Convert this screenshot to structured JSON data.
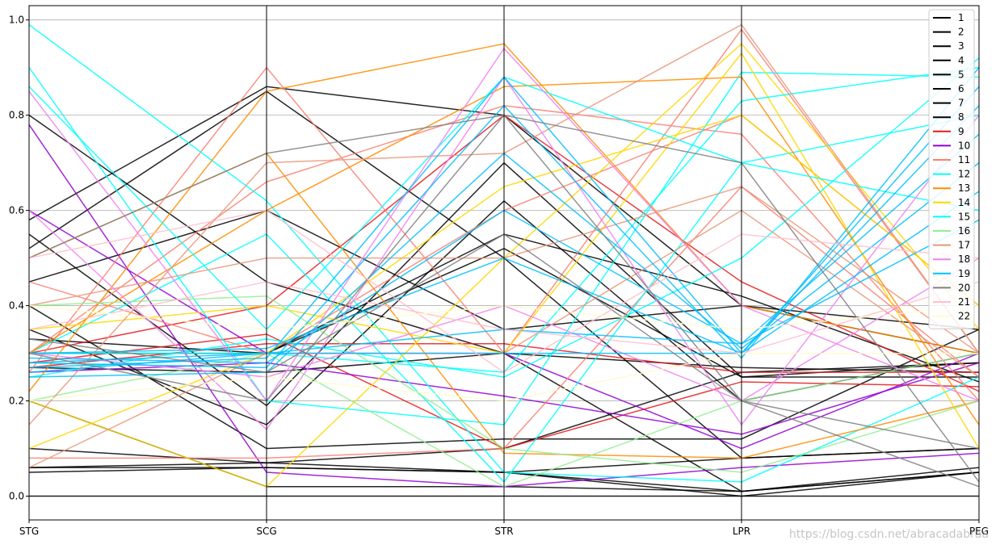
{
  "chart_data": {
    "type": "parallel_coordinates",
    "axes": [
      "STG",
      "SCG",
      "STR",
      "LPR",
      "PEG"
    ],
    "ylim": [
      -0.05,
      1.03
    ],
    "y_ticks": [
      "0.0",
      "0.2",
      "0.4",
      "0.6",
      "0.8",
      "1.0"
    ],
    "y_tick_values": [
      0.0,
      0.2,
      0.4,
      0.6,
      0.8,
      1.0
    ],
    "grid": true,
    "legend_position": "upper right",
    "series": [
      {
        "name": "1",
        "color": "#000000",
        "values": [
          [
            0.0,
            0.0,
            0.0,
            0.0,
            0.0
          ],
          [
            0.06,
            0.07,
            0.05,
            0.0,
            0.05
          ]
        ]
      },
      {
        "name": "2",
        "color": "#000000",
        "values": [
          [
            0.05,
            0.06,
            0.05,
            0.01,
            0.05
          ],
          [
            0.52,
            0.85,
            0.5,
            0.08,
            0.1
          ]
        ]
      },
      {
        "name": "3",
        "color": "#000000",
        "values": [
          [
            0.06,
            0.06,
            0.05,
            0.08,
            0.1
          ],
          [
            0.55,
            0.19,
            0.7,
            0.25,
            0.28
          ]
        ]
      },
      {
        "name": "4",
        "color": "#000000",
        "values": [
          [
            0.58,
            0.86,
            0.8,
            0.4,
            0.3
          ],
          [
            0.27,
            0.26,
            0.3,
            0.27,
            0.26
          ]
        ]
      },
      {
        "name": "5",
        "color": "#000000",
        "values": [
          [
            0.3,
            0.3,
            0.52,
            0.25,
            0.25
          ],
          [
            0.4,
            0.1,
            0.12,
            0.12,
            0.35
          ]
        ]
      },
      {
        "name": "6",
        "color": "#000000",
        "values": [
          [
            0.1,
            0.07,
            0.1,
            0.26,
            0.28
          ],
          [
            0.2,
            0.02,
            0.02,
            0.01,
            0.06
          ]
        ]
      },
      {
        "name": "7",
        "color": "#000000",
        "values": [
          [
            0.35,
            0.15,
            0.62,
            0.2,
            0.3
          ],
          [
            0.8,
            0.45,
            0.3,
            0.01,
            0.05
          ]
        ]
      },
      {
        "name": "8",
        "color": "#000000",
        "values": [
          [
            0.45,
            0.6,
            0.35,
            0.4,
            0.35
          ],
          [
            0.33,
            0.3,
            0.55,
            0.42,
            0.24
          ]
        ]
      },
      {
        "name": "9",
        "color": "#e41a1c",
        "values": [
          [
            0.27,
            0.32,
            0.32,
            0.26,
            0.26
          ],
          [
            0.3,
            0.4,
            0.8,
            0.45,
            0.22
          ],
          [
            0.28,
            0.34,
            0.1,
            0.24,
            0.23
          ]
        ]
      },
      {
        "name": "10",
        "color": "#9400d3",
        "values": [
          [
            0.78,
            0.05,
            0.02,
            0.06,
            0.09
          ],
          [
            0.6,
            0.3,
            0.3,
            0.1,
            0.3
          ],
          [
            0.26,
            0.28,
            0.21,
            0.13,
            0.28
          ]
        ]
      },
      {
        "name": "11",
        "color": "#fa8072",
        "values": [
          [
            0.26,
            0.9,
            0.3,
            0.98,
            0.3
          ],
          [
            0.08,
            0.08,
            0.1,
            0.65,
            0.25
          ],
          [
            0.45,
            0.3,
            0.6,
            0.8,
            0.4
          ],
          [
            0.3,
            0.66,
            0.82,
            0.76,
            0.2
          ]
        ]
      },
      {
        "name": "12",
        "color": "#00ffff",
        "values": [
          [
            0.99,
            0.62,
            0.05,
            0.03,
            0.25
          ],
          [
            0.9,
            0.2,
            0.15,
            0.89,
            0.88
          ],
          [
            0.3,
            0.55,
            0.03,
            0.7,
            0.8
          ]
        ]
      },
      {
        "name": "13",
        "color": "#ff8c00",
        "values": [
          [
            0.22,
            0.85,
            0.95,
            0.4,
            0.3
          ],
          [
            0.3,
            0.6,
            0.86,
            0.88,
            0.15
          ],
          [
            0.5,
            0.72,
            0.09,
            0.08,
            0.2
          ]
        ]
      },
      {
        "name": "14",
        "color": "#ffd700",
        "values": [
          [
            0.2,
            0.02,
            0.5,
            0.95,
            0.35
          ],
          [
            0.35,
            0.4,
            0.3,
            0.93,
            0.1
          ],
          [
            0.1,
            0.3,
            0.65,
            0.8,
            0.4
          ]
        ]
      },
      {
        "name": "15",
        "color": "#00ffff",
        "values": [
          [
            0.86,
            0.35,
            0.88,
            0.7,
            0.6
          ],
          [
            0.3,
            0.3,
            0.26,
            0.83,
            0.9
          ],
          [
            0.25,
            0.33,
            0.25,
            0.5,
            0.92
          ]
        ]
      },
      {
        "name": "16",
        "color": "#90ee90",
        "values": [
          [
            0.4,
            0.42,
            0.1,
            0.05,
            0.2
          ],
          [
            0.2,
            0.3,
            0.02,
            0.2,
            0.3
          ]
        ]
      },
      {
        "name": "17",
        "color": "#e9967a",
        "values": [
          [
            0.15,
            0.7,
            0.72,
            0.99,
            0.3
          ],
          [
            0.06,
            0.3,
            0.3,
            0.6,
            0.25
          ],
          [
            0.4,
            0.5,
            0.5,
            0.65,
            0.3
          ]
        ]
      },
      {
        "name": "18",
        "color": "#ee82ee",
        "values": [
          [
            0.85,
            0.2,
            0.94,
            0.4,
            0.2
          ],
          [
            0.6,
            0.14,
            0.88,
            0.15,
            0.8
          ],
          [
            0.3,
            0.25,
            0.4,
            0.2,
            0.5
          ]
        ]
      },
      {
        "name": "19",
        "color": "#00bfff",
        "values": [
          [
            0.28,
            0.27,
            0.82,
            0.29,
            0.9
          ],
          [
            0.27,
            0.29,
            0.88,
            0.3,
            0.86
          ],
          [
            0.26,
            0.3,
            0.3,
            0.3,
            0.82
          ],
          [
            0.29,
            0.28,
            0.6,
            0.32,
            0.76
          ],
          [
            0.25,
            0.26,
            0.72,
            0.31,
            0.7
          ],
          [
            0.3,
            0.31,
            0.5,
            0.3,
            0.64
          ],
          [
            0.28,
            0.3,
            0.35,
            0.32,
            0.58
          ]
        ]
      },
      {
        "name": "20",
        "color": "#808080",
        "values": [
          [
            0.5,
            0.72,
            0.8,
            0.7,
            0.03
          ],
          [
            0.3,
            0.2,
            0.8,
            0.2,
            0.02
          ],
          [
            0.33,
            0.26,
            0.55,
            0.2,
            0.1
          ]
        ]
      },
      {
        "name": "21",
        "color": "#ffc0cb",
        "values": [
          [
            0.5,
            0.6,
            0.26,
            0.55,
            0.5
          ],
          [
            0.35,
            0.45,
            0.35,
            0.3,
            0.45
          ]
        ]
      },
      {
        "name": "22",
        "color": "#fffacd",
        "values": [
          [
            0.4,
            0.35,
            0.4,
            0.35,
            0.4
          ],
          [
            0.2,
            0.25,
            0.2,
            0.3,
            0.3
          ]
        ]
      }
    ]
  },
  "watermark": "https://blog.csdn.net/abracadabraa"
}
